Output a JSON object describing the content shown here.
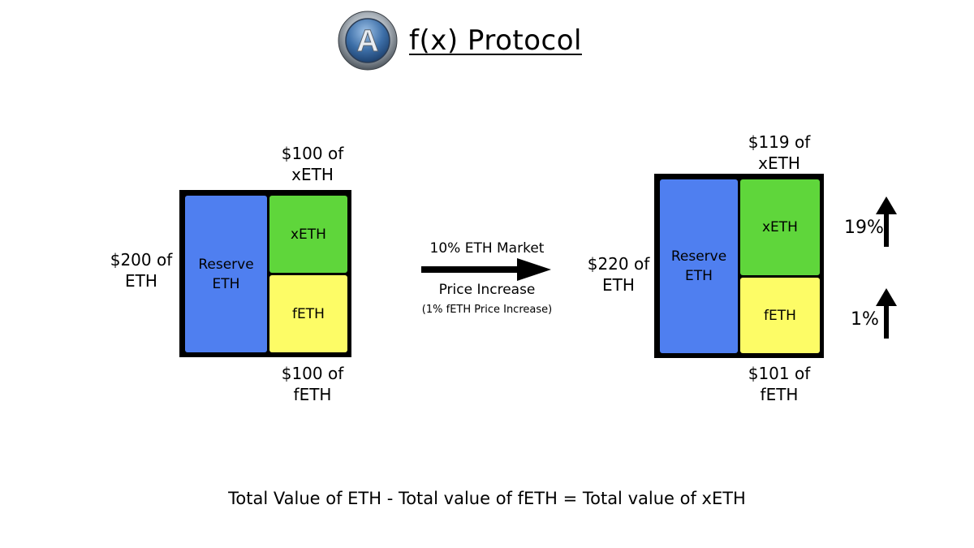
{
  "header": {
    "logo_letter": "A",
    "title": "f(x) Protocol"
  },
  "left": {
    "top_label_1": "$100 of",
    "top_label_2": "xETH",
    "side_label_1": "$200 of",
    "side_label_2": "ETH",
    "reserve_1": "Reserve",
    "reserve_2": "ETH",
    "xeth": "xETH",
    "feth": "fETH",
    "bottom_label_1": "$100 of",
    "bottom_label_2": "fETH"
  },
  "transition": {
    "line_1": "10% ETH Market",
    "line_2": "Price Increase",
    "line_3": "(1% fETH Price Increase)"
  },
  "right": {
    "top_label_1": "$119 of",
    "top_label_2": "xETH",
    "side_label_1": "$220 of",
    "side_label_2": "ETH",
    "reserve_1": "Reserve",
    "reserve_2": "ETH",
    "xeth": "xETH",
    "feth": "fETH",
    "bottom_label_1": "$101 of",
    "bottom_label_2": "fETH",
    "xeth_change": "19%",
    "feth_change": "1%"
  },
  "footer": {
    "equation": "Total Value of ETH - Total value of fETH = Total value of xETH"
  },
  "colors": {
    "reserve": "#4f7ff0",
    "xeth": "#5fd63b",
    "feth": "#fdfc66"
  }
}
